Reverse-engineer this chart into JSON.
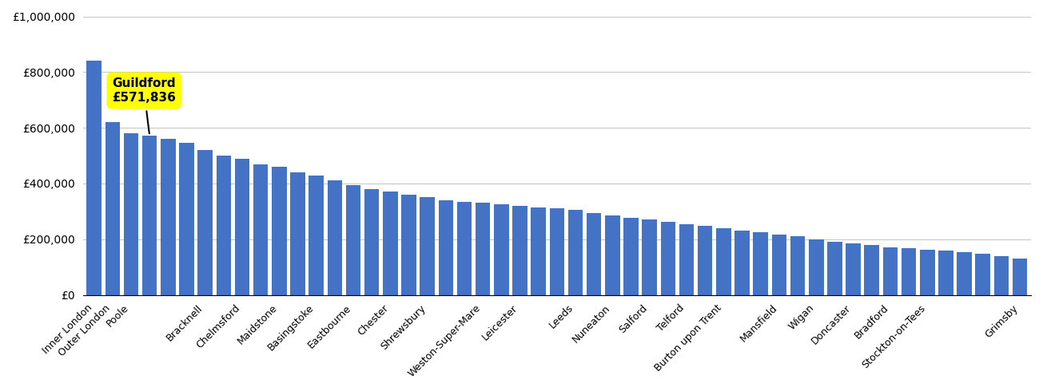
{
  "bar_color": "#4472C4",
  "highlight_box_color": "#FFFF00",
  "highlight_text_color": "#000000",
  "highlight_label": "Guildford\n£571,836",
  "highlight_index": 3,
  "background_color": "#FFFFFF",
  "grid_color": "#C8C8C8",
  "ylim": [
    0,
    1000000
  ],
  "yticks": [
    0,
    200000,
    400000,
    600000,
    800000,
    1000000
  ],
  "categories": [
    "Inner London",
    "Outer London",
    "Poole",
    "",
    "",
    "",
    "Bracknell",
    "",
    "Chelmsford",
    "",
    "Maidstone",
    "",
    "Basingstoke",
    "",
    "Eastbourne",
    "",
    "Chester",
    "",
    "Shrewsbury",
    "",
    "",
    "Weston-Super-Mare",
    "",
    "Leicester",
    "",
    "",
    "Leeds",
    "",
    "Nuneaton",
    "",
    "Salford",
    "",
    "Telford",
    "",
    "Burton upon Trent",
    "",
    "",
    "Mansfield",
    "",
    "Wigan",
    "",
    "Doncaster",
    "",
    "Bradford",
    "",
    "",
    "Stockton-on-Tees",
    "",
    "",
    "",
    "Grimsby"
  ],
  "values": [
    840000,
    620000,
    580000,
    571836,
    560000,
    545000,
    520000,
    500000,
    490000,
    470000,
    460000,
    440000,
    430000,
    410000,
    395000,
    380000,
    370000,
    360000,
    350000,
    340000,
    335000,
    330000,
    325000,
    320000,
    315000,
    310000,
    305000,
    295000,
    285000,
    278000,
    270000,
    263000,
    255000,
    248000,
    240000,
    232000,
    225000,
    218000,
    210000,
    200000,
    192000,
    185000,
    178000,
    172000,
    168000,
    163000,
    158000,
    153000,
    148000,
    140000,
    130000
  ],
  "xtick_positions": [
    0,
    1,
    2,
    6,
    8,
    10,
    12,
    14,
    16,
    18,
    21,
    23,
    26,
    28,
    30,
    32,
    34,
    37,
    39,
    41,
    43,
    45,
    50
  ],
  "xtick_labels": [
    "Inner London",
    "Outer London",
    "Poole",
    "Bracknell",
    "Chelmsford",
    "Maidstone",
    "Basingstoke",
    "Eastbourne",
    "Chester",
    "Shrewsbury",
    "Weston-Super-Mare",
    "Leicester",
    "Leeds",
    "Nuneaton",
    "Salford",
    "Telford",
    "Burton upon Trent",
    "Mansfield",
    "Wigan",
    "Doncaster",
    "Bradford",
    "Stockton-on-Tees",
    "Grimsby"
  ]
}
